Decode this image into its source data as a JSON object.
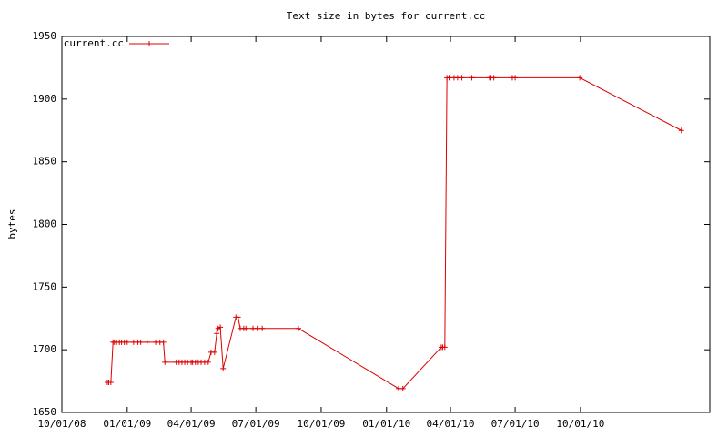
{
  "chart_data": {
    "type": "line",
    "title": "Text size in bytes for current.cc",
    "y_label": "bytes",
    "legend": "top-left",
    "grid": false,
    "markers": "plus",
    "x": [
      "2008-12-04",
      "2008-12-06",
      "2008-12-09",
      "2008-12-12",
      "2008-12-14",
      "2008-12-17",
      "2008-12-21",
      "2008-12-24",
      "2008-12-28",
      "2009-01-01",
      "2009-01-10",
      "2009-01-16",
      "2009-01-20",
      "2009-01-29",
      "2009-02-10",
      "2009-02-16",
      "2009-02-21",
      "2009-02-23",
      "2009-03-11",
      "2009-03-15",
      "2009-03-19",
      "2009-03-23",
      "2009-03-27",
      "2009-04-01",
      "2009-04-03",
      "2009-04-07",
      "2009-04-11",
      "2009-04-15",
      "2009-04-20",
      "2009-04-25",
      "2009-04-29",
      "2009-05-04",
      "2009-05-07",
      "2009-05-09",
      "2009-05-12",
      "2009-05-16",
      "2009-06-03",
      "2009-06-06",
      "2009-06-09",
      "2009-06-14",
      "2009-06-17",
      "2009-06-27",
      "2009-07-03",
      "2009-07-10",
      "2009-08-30",
      "2010-01-18",
      "2010-01-24",
      "2010-03-19",
      "2010-03-21",
      "2010-03-24",
      "2010-03-27",
      "2010-03-30",
      "2010-04-06",
      "2010-04-11",
      "2010-04-17",
      "2010-05-01",
      "2010-05-26",
      "2010-05-28",
      "2010-06-01",
      "2010-06-27",
      "2010-07-01",
      "2010-09-30",
      "2011-02-20"
    ],
    "series": [
      {
        "name": "current.cc",
        "color": "#dd0000",
        "values": [
          1674,
          1674,
          1674,
          1706,
          1706,
          1706,
          1706,
          1706,
          1706,
          1706,
          1706,
          1706,
          1706,
          1706,
          1706,
          1706,
          1706,
          1690,
          1690,
          1690,
          1690,
          1690,
          1690,
          1690,
          1690,
          1690,
          1690,
          1690,
          1690,
          1690,
          1698,
          1698,
          1713,
          1717,
          1718,
          1685,
          1726,
          1726,
          1717,
          1717,
          1717,
          1717,
          1717,
          1717,
          1717,
          1669,
          1669,
          1702,
          1702,
          1702,
          1917,
          1917,
          1917,
          1917,
          1917,
          1917,
          1917,
          1917,
          1917,
          1917,
          1917,
          1917,
          1875
        ]
      }
    ],
    "xlim": [
      "2008-10-01",
      "2011-04-01"
    ],
    "xticks": [
      {
        "value": "2008-10-01",
        "label": "10/01/08"
      },
      {
        "value": "2009-01-01",
        "label": "01/01/09"
      },
      {
        "value": "2009-04-01",
        "label": "04/01/09"
      },
      {
        "value": "2009-07-01",
        "label": "07/01/09"
      },
      {
        "value": "2009-10-01",
        "label": "10/01/09"
      },
      {
        "value": "2010-01-01",
        "label": "01/01/10"
      },
      {
        "value": "2010-04-01",
        "label": "04/01/10"
      },
      {
        "value": "2010-07-01",
        "label": "07/01/10"
      },
      {
        "value": "2010-10-01",
        "label": "10/01/10"
      }
    ],
    "ylim": [
      1650,
      1950
    ],
    "yticks": [
      1650,
      1700,
      1750,
      1800,
      1850,
      1900,
      1950
    ]
  }
}
